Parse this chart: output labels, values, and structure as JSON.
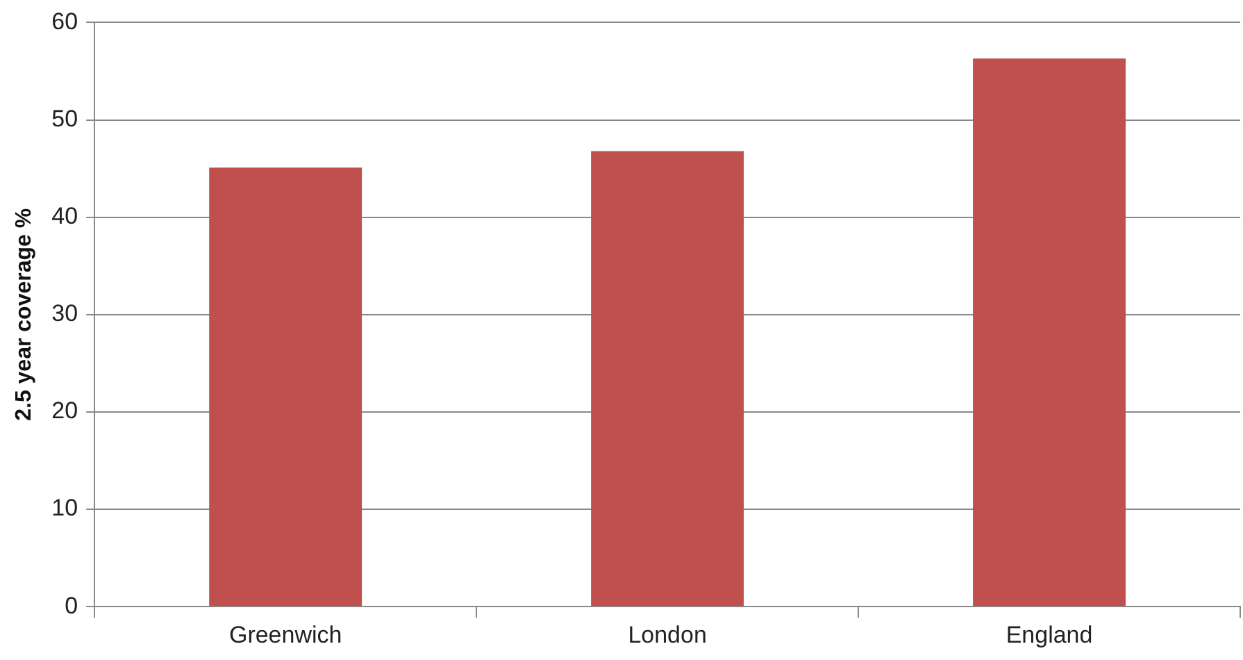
{
  "chart_data": {
    "type": "bar",
    "ylabel": "2.5 year coverage %",
    "categories": [
      "Greenwich",
      "London",
      "England"
    ],
    "values": [
      45.1,
      46.8,
      56.3
    ],
    "color": "#c0504d",
    "ylim": [
      0,
      60
    ],
    "yticks": [
      0,
      10,
      20,
      30,
      40,
      50,
      60
    ],
    "grid": "y",
    "legend": false
  }
}
